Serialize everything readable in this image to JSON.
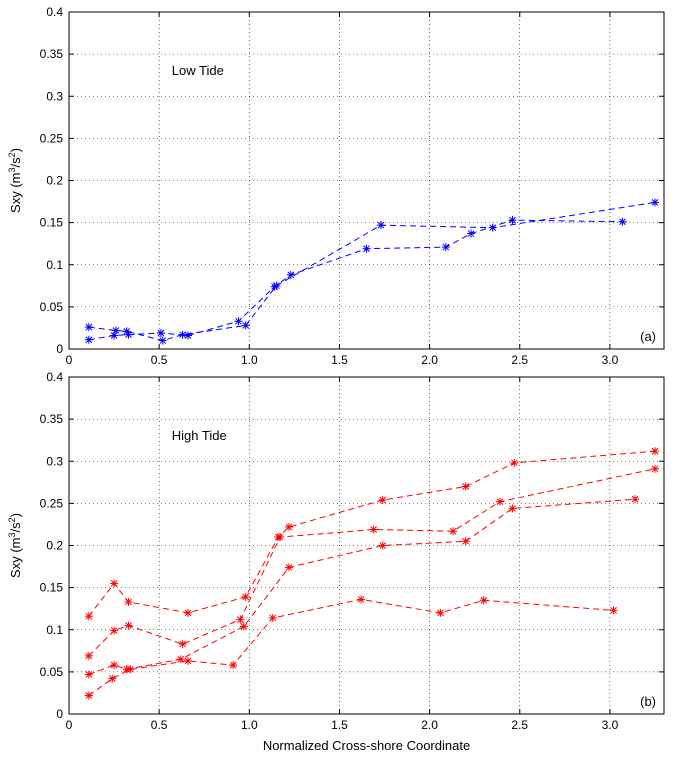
{
  "figure": {
    "xlabel": "Normalized Cross-shore Coordinate"
  },
  "chart_data": [
    {
      "type": "line",
      "panel_label": "(a)",
      "annotation": "Low Tide",
      "ylabel": "Sxy (m3/s2)",
      "ylabel_parts": {
        "prefix": "Sxy (m",
        "exp1": "3",
        "mid": "/s",
        "exp2": "2",
        "suffix": ")"
      },
      "xlim": [
        0,
        3.3
      ],
      "ylim": [
        0,
        0.4
      ],
      "xticks": [
        0,
        0.5,
        1.0,
        1.5,
        2.0,
        2.5,
        3.0
      ],
      "xtick_labels": [
        "0",
        "0.5",
        "1.0",
        "1.5",
        "2.0",
        "2.5",
        "3.0"
      ],
      "yticks": [
        0,
        0.05,
        0.1,
        0.15,
        0.2,
        0.25,
        0.3,
        0.35,
        0.4
      ],
      "ytick_labels": [
        "0",
        "0.05",
        "0.1",
        "0.15",
        "0.2",
        "0.25",
        "0.3",
        "0.35",
        "0.4"
      ],
      "grid": true,
      "color": "#0000ff",
      "line_style": "dashed",
      "marker": "asterisk",
      "series": [
        {
          "x": [
            0.11,
            0.25,
            0.33,
            0.51,
            0.66,
            0.94,
            1.14,
            1.23,
            1.65,
            2.09,
            2.23,
            2.46,
            3.07
          ],
          "y": [
            0.011,
            0.016,
            0.017,
            0.019,
            0.016,
            0.033,
            0.074,
            0.088,
            0.119,
            0.121,
            0.137,
            0.153,
            0.151
          ]
        },
        {
          "x": [
            0.11,
            0.26,
            0.32,
            0.52,
            0.63,
            0.98,
            1.15,
            1.73,
            2.35,
            3.25
          ],
          "y": [
            0.026,
            0.022,
            0.021,
            0.01,
            0.017,
            0.028,
            0.075,
            0.147,
            0.144,
            0.174
          ]
        }
      ]
    },
    {
      "type": "line",
      "panel_label": "(b)",
      "annotation": "High Tide",
      "ylabel": "Sxy (m3/s2)",
      "ylabel_parts": {
        "prefix": "Sxy (m",
        "exp1": "3",
        "mid": "/s",
        "exp2": "2",
        "suffix": ")"
      },
      "xlim": [
        0,
        3.3
      ],
      "ylim": [
        0,
        0.4
      ],
      "xticks": [
        0,
        0.5,
        1.0,
        1.5,
        2.0,
        2.5,
        3.0
      ],
      "xtick_labels": [
        "0",
        "0.5",
        "1.0",
        "1.5",
        "2.0",
        "2.5",
        "3.0"
      ],
      "yticks": [
        0,
        0.05,
        0.1,
        0.15,
        0.2,
        0.25,
        0.3,
        0.35,
        0.4
      ],
      "ytick_labels": [
        "0",
        "0.05",
        "0.1",
        "0.15",
        "0.2",
        "0.25",
        "0.3",
        "0.35",
        "0.4"
      ],
      "grid": true,
      "color": "#ff0000",
      "line_style": "dashed",
      "marker": "asterisk",
      "series": [
        {
          "x": [
            0.11,
            0.25,
            0.33,
            0.66,
            0.98,
            1.16,
            1.22,
            1.74,
            2.2,
            2.47,
            3.25
          ],
          "y": [
            0.116,
            0.155,
            0.133,
            0.12,
            0.139,
            0.21,
            0.222,
            0.254,
            0.27,
            0.298,
            0.312
          ]
        },
        {
          "x": [
            0.11,
            0.25,
            0.33,
            0.63,
            0.95,
            1.17,
            1.69,
            2.13,
            2.39,
            3.25
          ],
          "y": [
            0.069,
            0.099,
            0.105,
            0.083,
            0.112,
            0.21,
            0.219,
            0.217,
            0.252,
            0.291
          ]
        },
        {
          "x": [
            0.11,
            0.25,
            0.32,
            0.62,
            0.97,
            1.22,
            1.74,
            2.2,
            2.46,
            3.14
          ],
          "y": [
            0.047,
            0.058,
            0.053,
            0.065,
            0.104,
            0.174,
            0.2,
            0.205,
            0.244,
            0.255
          ]
        },
        {
          "x": [
            0.11,
            0.24,
            0.34,
            0.66,
            0.91,
            1.13,
            1.62,
            2.06,
            2.3,
            3.02
          ],
          "y": [
            0.022,
            0.042,
            0.053,
            0.063,
            0.058,
            0.114,
            0.136,
            0.12,
            0.135,
            0.123
          ]
        }
      ]
    }
  ]
}
